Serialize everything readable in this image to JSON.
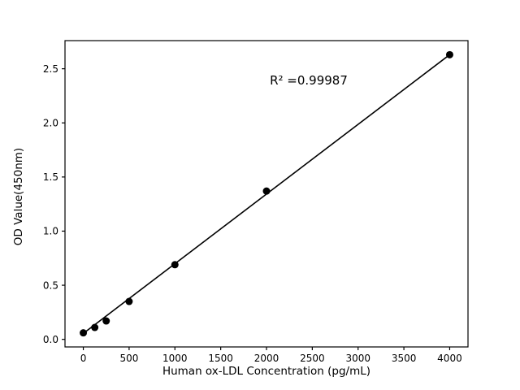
{
  "chart_data": {
    "type": "scatter",
    "title": "",
    "xlabel": "Human ox-LDL Concentration (pg/mL)",
    "ylabel": "OD Value(450nm)",
    "annotation": "R² =0.99987",
    "x": [
      0,
      125,
      250,
      500,
      1000,
      2000,
      4000
    ],
    "y": [
      0.06,
      0.11,
      0.17,
      0.35,
      0.69,
      1.37,
      2.63
    ],
    "fit_line": {
      "x1": 0,
      "y1": 0.055,
      "x2": 4000,
      "y2": 2.63
    },
    "xlim": [
      -200,
      4200
    ],
    "ylim": [
      -0.07,
      2.76
    ],
    "xticks": [
      {
        "value": 0,
        "label": "0"
      },
      {
        "value": 500,
        "label": "500"
      },
      {
        "value": 1000,
        "label": "1000"
      },
      {
        "value": 1500,
        "label": "1500"
      },
      {
        "value": 2000,
        "label": "2000"
      },
      {
        "value": 2500,
        "label": "2500"
      },
      {
        "value": 3000,
        "label": "3000"
      },
      {
        "value": 3500,
        "label": "3500"
      },
      {
        "value": 4000,
        "label": "4000"
      }
    ],
    "yticks": [
      {
        "value": 0.0,
        "label": "0.0"
      },
      {
        "value": 0.5,
        "label": "0.5"
      },
      {
        "value": 1.0,
        "label": "1.0"
      },
      {
        "value": 1.5,
        "label": "1.5"
      },
      {
        "value": 2.0,
        "label": "2.0"
      },
      {
        "value": 2.5,
        "label": "2.5"
      }
    ],
    "grid": false,
    "legend": "none",
    "marker_color": "#000000",
    "line_color": "#000000",
    "axis_color": "#000000",
    "background_color": "#ffffff"
  }
}
